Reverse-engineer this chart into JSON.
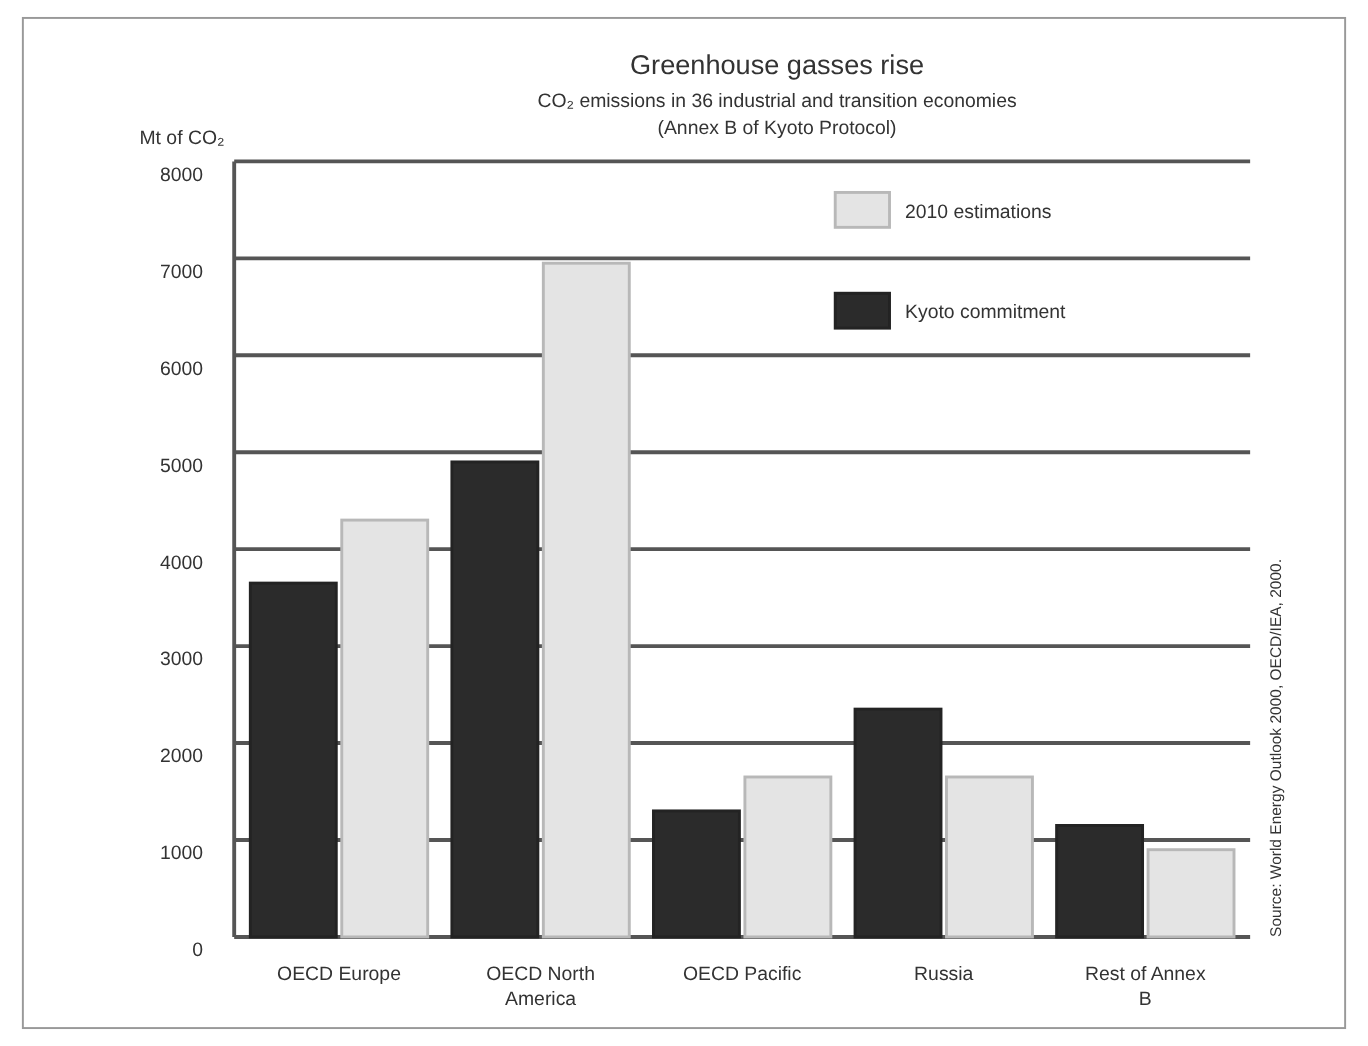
{
  "chart_data": {
    "type": "bar",
    "title": "Greenhouse gasses rise",
    "subtitle": "CO₂ emissions in 36 industrial and transition economies",
    "annotations": [
      "(Annex B of Kyoto Protocol)",
      "Source: World Energy Outlook 2000, OECD/IEA, 2000."
    ],
    "ylabel": "Mt of CO₂",
    "categories": [
      "OECD Europe",
      "OECD North America",
      "OECD Pacific",
      "Russia",
      "Rest of Annex B"
    ],
    "series": [
      {
        "name": "Kyoto commitment",
        "color": "#2b2b2b",
        "values": [
          3650,
          4900,
          1300,
          2350,
          1150
        ]
      },
      {
        "name": "2010 estimations",
        "color": "#e4e4e4",
        "values": [
          4300,
          6950,
          1650,
          1650,
          900
        ]
      }
    ],
    "ylim": [
      0,
      8000
    ],
    "yticks": [
      0,
      1000,
      2000,
      3000,
      4000,
      5000,
      6000,
      7000,
      8000
    ],
    "grid": "y",
    "legend": "top right"
  }
}
